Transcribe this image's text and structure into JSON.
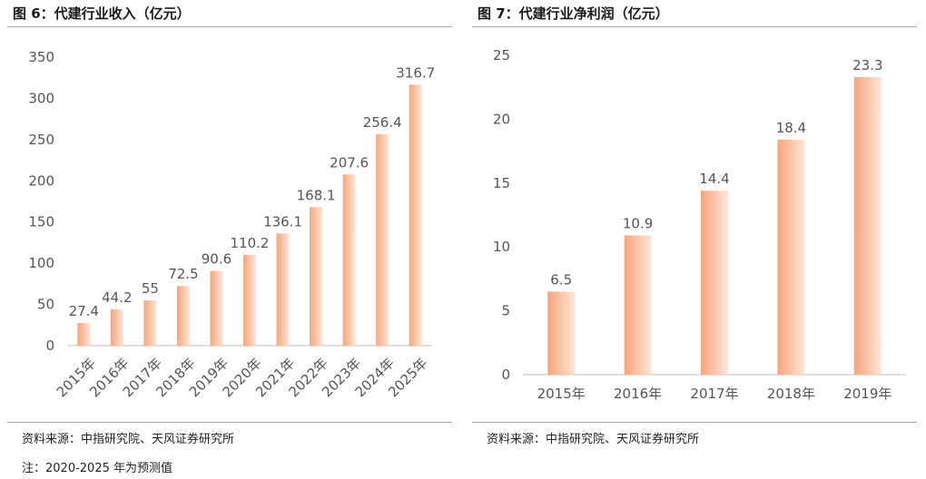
{
  "panels": {
    "left": {
      "title": "图 6：代建行业收入（亿元）",
      "source": "资料来源：中指研究院、天风证券研究所"
    },
    "right": {
      "title": "图 7：代建行业净利润（亿元）",
      "source": "资料来源：中指研究院、天风证券研究所"
    }
  },
  "note": "注：2020-2025 年为预测值",
  "colors": {
    "bar_top": "#f8a47a",
    "bar_bottom": "#fde6d8",
    "rule": "#d99a5b",
    "axis": "#bfbfbf"
  },
  "chart_data": [
    {
      "type": "bar",
      "title": "代建行业收入（亿元）",
      "categories": [
        "2015年",
        "2016年",
        "2017年",
        "2018年",
        "2019年",
        "2020年",
        "2021年",
        "2022年",
        "2023年",
        "2024年",
        "2025年"
      ],
      "values": [
        27.4,
        44.2,
        55,
        72.5,
        90.6,
        110.2,
        136.1,
        168.1,
        207.6,
        256.4,
        316.7
      ],
      "value_labels": [
        "27.4",
        "44.2",
        "55",
        "72.5",
        "90.6",
        "110.2",
        "136.1",
        "168.1",
        "207.6",
        "256.4",
        "316.7"
      ],
      "y_ticks": [
        "0",
        "50",
        "100",
        "150",
        "200",
        "250",
        "300",
        "350"
      ],
      "ylim": [
        0,
        350
      ],
      "grid": false,
      "legend": "none",
      "x_label_rotation": -45
    },
    {
      "type": "bar",
      "title": "代建行业净利润（亿元）",
      "categories": [
        "2015年",
        "2016年",
        "2017年",
        "2018年",
        "2019年"
      ],
      "values": [
        6.5,
        10.9,
        14.4,
        18.4,
        23.3
      ],
      "value_labels": [
        "6.5",
        "10.9",
        "14.4",
        "18.4",
        "23.3"
      ],
      "y_ticks": [
        "0",
        "5",
        "10",
        "15",
        "20",
        "25"
      ],
      "ylim": [
        0,
        25
      ],
      "grid": false,
      "legend": "none",
      "x_label_rotation": 0
    }
  ]
}
